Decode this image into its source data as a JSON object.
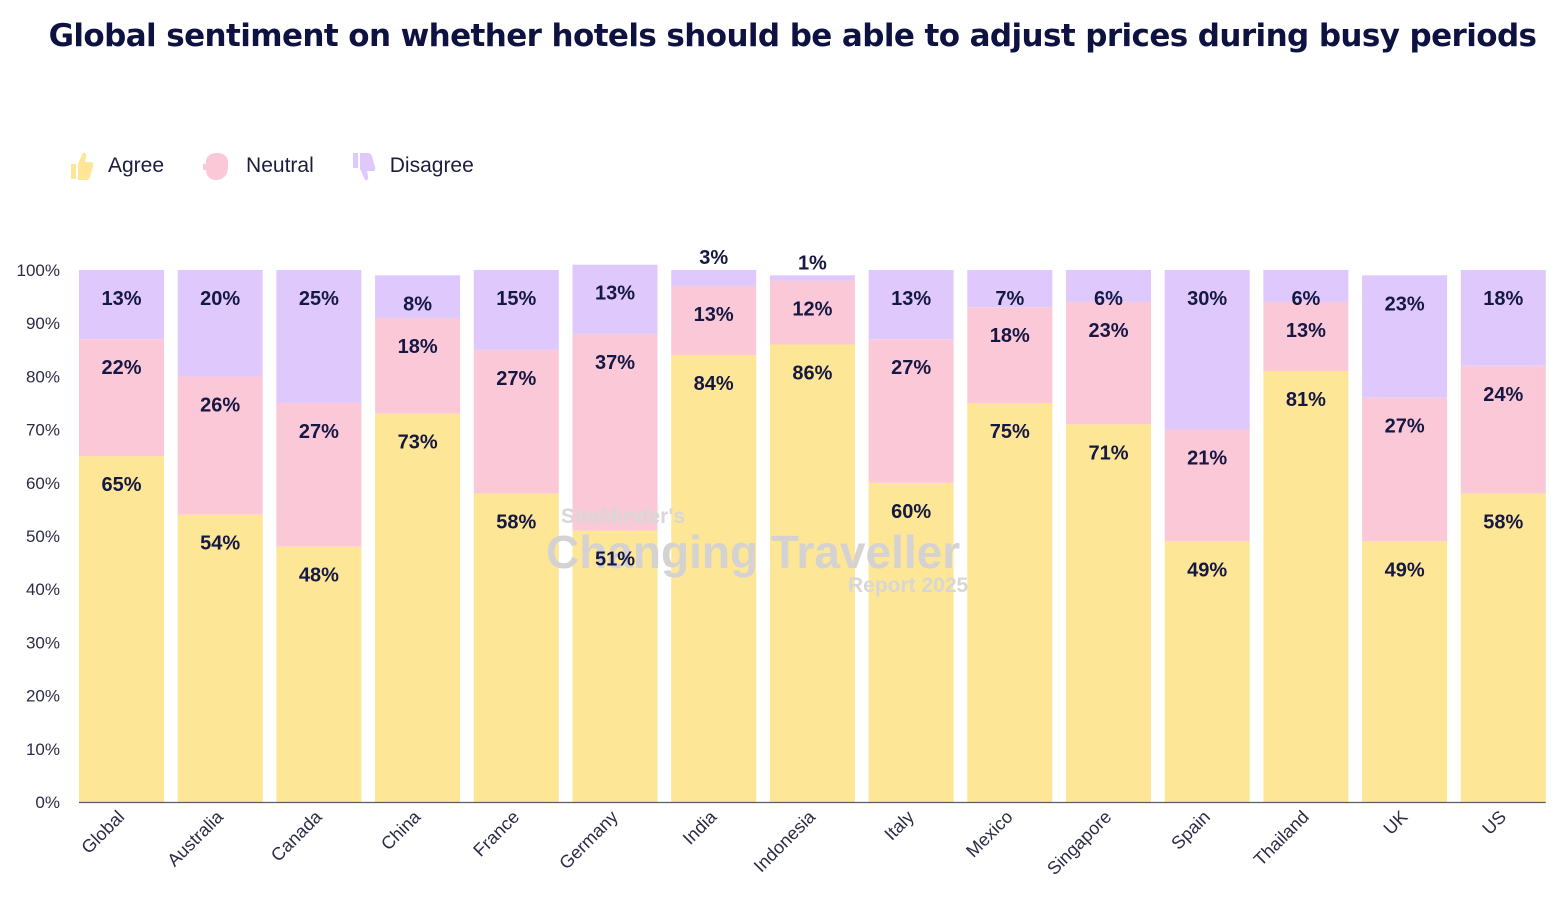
{
  "chart_data": {
    "type": "bar",
    "stacked": true,
    "title": "Global sentiment on whether hotels should be able to adjust prices during busy periods",
    "categories": [
      "Global",
      "Australia",
      "Canada",
      "China",
      "France",
      "Germany",
      "India",
      "Indonesia",
      "Italy",
      "Mexico",
      "Singapore",
      "Spain",
      "Thailand",
      "UK",
      "US"
    ],
    "series": [
      {
        "name": "Agree",
        "color": "#fde695",
        "values": [
          65,
          54,
          48,
          73,
          58,
          51,
          84,
          86,
          60,
          75,
          71,
          49,
          81,
          49,
          58
        ]
      },
      {
        "name": "Neutral",
        "color": "#fbc8d8",
        "values": [
          22,
          26,
          27,
          18,
          27,
          37,
          13,
          12,
          27,
          18,
          23,
          21,
          13,
          27,
          24
        ]
      },
      {
        "name": "Disagree",
        "color": "#dfc9fc",
        "values": [
          13,
          20,
          25,
          8,
          15,
          13,
          3,
          1,
          13,
          7,
          6,
          30,
          6,
          23,
          18
        ]
      }
    ],
    "ylim": [
      0,
      100
    ],
    "yticks": [
      "0%",
      "10%",
      "20%",
      "30%",
      "40%",
      "50%",
      "60%",
      "70%",
      "80%",
      "90%",
      "100%"
    ],
    "legend_position": "top-left",
    "grid": false,
    "watermark": {
      "line1": "SiteMinder's",
      "line2": "Changing Traveller",
      "line3": "Report 2025"
    }
  }
}
